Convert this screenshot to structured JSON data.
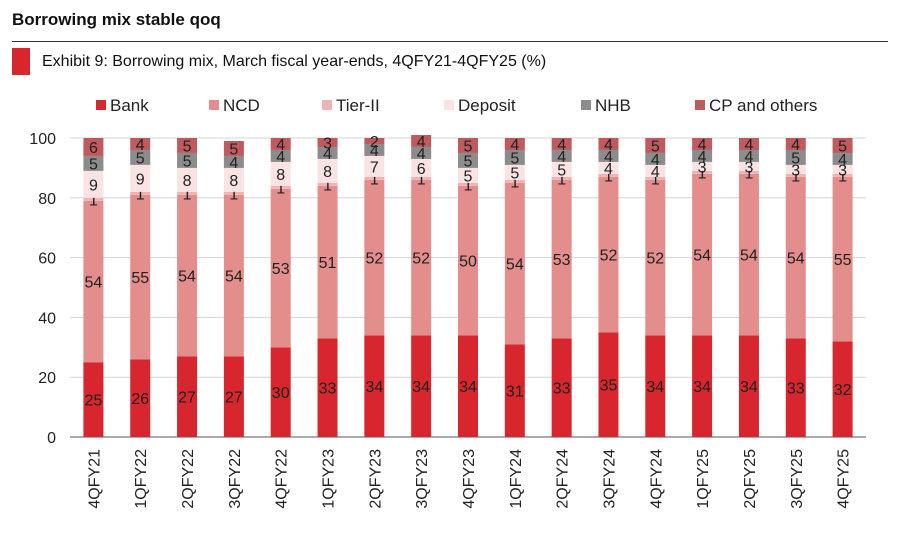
{
  "header": {
    "headline": "Borrowing mix stable qoq",
    "exhibit_title": "Exhibit 9: Borrowing mix, March fiscal year-ends, 4QFY21-4QFY25 (%)",
    "accent_color": "#d7262d"
  },
  "chart_data": {
    "type": "bar",
    "stacked": true,
    "title": "Exhibit 9: Borrowing mix, March fiscal year-ends, 4QFY21-4QFY25 (%)",
    "xlabel": "",
    "ylabel": "",
    "ylim": [
      0,
      100
    ],
    "yticks": [
      0,
      20,
      40,
      60,
      80,
      100
    ],
    "grid": true,
    "legend_position": "top",
    "categories": [
      "4QFY21",
      "1QFY22",
      "2QFY22",
      "3QFY22",
      "4QFY22",
      "1QFY23",
      "2QFY23",
      "3QFY23",
      "4QFY23",
      "1QFY24",
      "2QFY24",
      "3QFY24",
      "4QFY24",
      "1QFY25",
      "2QFY25",
      "3QFY25",
      "4QFY25"
    ],
    "series": [
      {
        "name": "Bank",
        "color": "#d7262d",
        "values": [
          25,
          26,
          27,
          27,
          30,
          33,
          34,
          34,
          34,
          31,
          33,
          35,
          34,
          34,
          34,
          33,
          32
        ]
      },
      {
        "name": "NCD",
        "color": "#e38d8d",
        "values": [
          54,
          55,
          54,
          54,
          53,
          51,
          52,
          52,
          50,
          54,
          53,
          52,
          52,
          54,
          54,
          54,
          55
        ]
      },
      {
        "name": "Tier-II",
        "color": "#f0b3b3",
        "values": [
          1,
          1,
          1,
          1,
          1,
          1,
          1,
          1,
          1,
          1,
          1,
          1,
          1,
          1,
          1,
          1,
          1
        ]
      },
      {
        "name": "Deposit",
        "color": "#fae3e3",
        "values": [
          9,
          9,
          8,
          8,
          8,
          8,
          7,
          6,
          5,
          5,
          5,
          4,
          4,
          3,
          3,
          3,
          3
        ]
      },
      {
        "name": "NHB",
        "color": "#8c8c8c",
        "values": [
          5,
          5,
          5,
          4,
          4,
          4,
          4,
          4,
          5,
          5,
          4,
          4,
          4,
          4,
          4,
          5,
          4
        ]
      },
      {
        "name": "CP and others",
        "color": "#bf5a5e",
        "values": [
          6,
          4,
          5,
          5,
          4,
          3,
          2,
          4,
          5,
          4,
          4,
          4,
          5,
          4,
          4,
          4,
          5
        ]
      }
    ]
  }
}
